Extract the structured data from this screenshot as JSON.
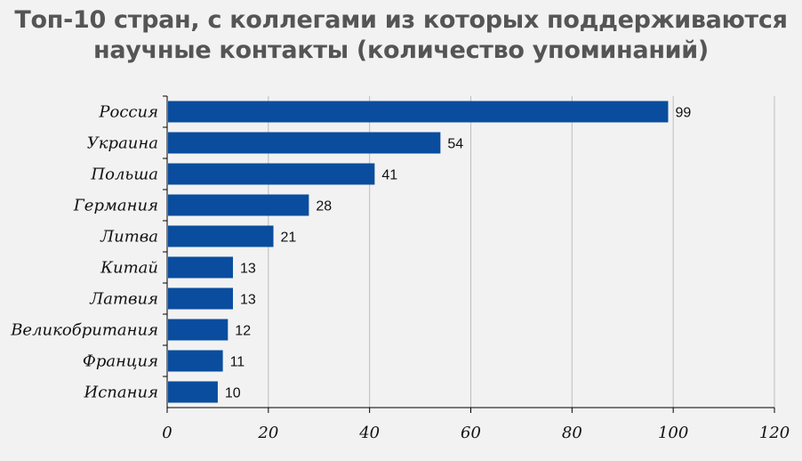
{
  "chart_data": {
    "type": "bar",
    "orientation": "horizontal",
    "title_line1": "Топ-10 стран, с коллегами из которых поддерживаются",
    "title_line2": "научные контакты (количество упоминаний)",
    "categories": [
      "Россия",
      "Украина",
      "Польша",
      "Германия",
      "Литва",
      "Китай",
      "Латвия",
      "Великобритания",
      "Франция",
      "Испания"
    ],
    "values": [
      99,
      54,
      41,
      28,
      21,
      13,
      13,
      12,
      11,
      10
    ],
    "data_labels": [
      "99",
      "54",
      "41",
      "28",
      "21",
      "13",
      "13",
      "12",
      "11",
      "10"
    ],
    "xlim": [
      0,
      120
    ],
    "xticks": [
      0,
      20,
      40,
      60,
      80,
      100,
      120
    ],
    "xtick_labels": [
      "0",
      "20",
      "40",
      "60",
      "80",
      "100",
      "120"
    ],
    "grid": "vertical",
    "legend": "none",
    "colors": {
      "bar": "#0a4d9e",
      "grid": "#bdbdbd",
      "background": "#f2f2f2",
      "title": "#555555"
    }
  }
}
